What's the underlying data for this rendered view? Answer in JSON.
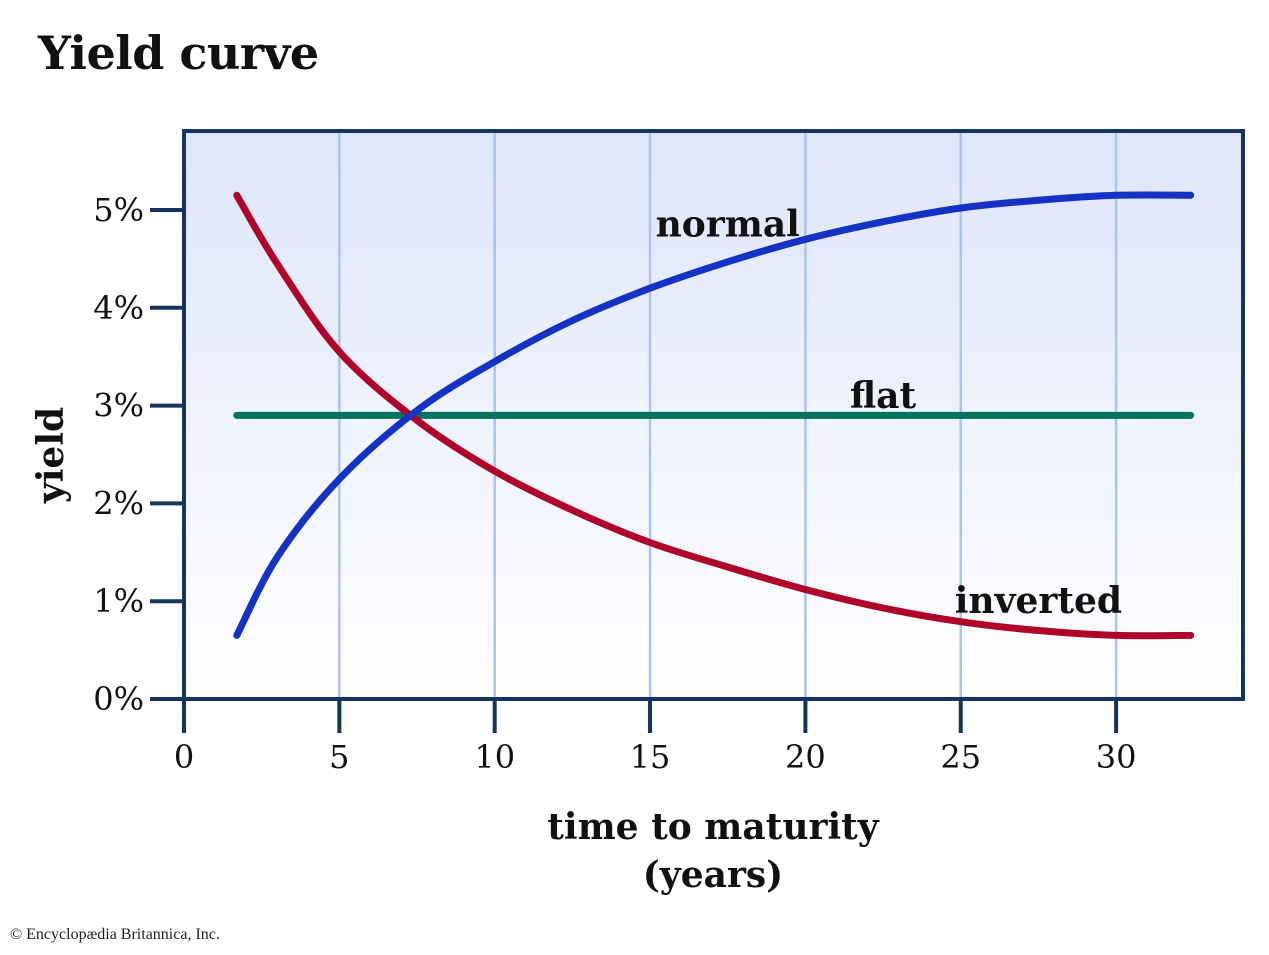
{
  "title": "Yield curve",
  "credit": "© Encyclopædia Britannica, Inc.",
  "colors": {
    "normal": "#1432c4",
    "inverted": "#b0052a",
    "flat": "#00735f",
    "frame": "#15345e",
    "grid": "#aac4ee",
    "plot_bg_top": "#dde5fa",
    "plot_bg_bottom": "#ffffff"
  },
  "chart_data": {
    "type": "line",
    "title": "Yield curve",
    "xlabel": [
      "time to maturity",
      "(years)"
    ],
    "ylabel": "yield",
    "xlim": [
      0,
      34
    ],
    "ylim": [
      0,
      5.8
    ],
    "xticks": [
      0,
      5,
      10,
      15,
      20,
      25,
      30
    ],
    "xtick_labels": [
      "0",
      "5",
      "10",
      "15",
      "20",
      "25",
      "30"
    ],
    "yticks": [
      0,
      1,
      2,
      3,
      4,
      5
    ],
    "ytick_labels": [
      "0%",
      "1%",
      "2%",
      "3%",
      "4%",
      "5%"
    ],
    "grid": "vertical",
    "series": [
      {
        "name": "normal",
        "color": "#1432c4",
        "x": [
          1.7,
          3,
          5,
          7.5,
          10,
          12.5,
          15,
          17.5,
          20,
          22.5,
          25,
          27.5,
          30,
          32.4
        ],
        "y": [
          0.65,
          1.45,
          2.25,
          2.95,
          3.45,
          3.87,
          4.2,
          4.47,
          4.7,
          4.88,
          5.02,
          5.1,
          5.15,
          5.15
        ]
      },
      {
        "name": "flat",
        "color": "#00735f",
        "x": [
          1.7,
          32.4
        ],
        "y": [
          2.9,
          2.9
        ]
      },
      {
        "name": "inverted",
        "color": "#b0052a",
        "x": [
          1.7,
          3,
          5,
          7.5,
          10,
          12.5,
          15,
          17.5,
          20,
          22.5,
          25,
          27.5,
          30,
          32.4
        ],
        "y": [
          5.15,
          4.45,
          3.55,
          2.85,
          2.33,
          1.93,
          1.6,
          1.35,
          1.12,
          0.93,
          0.79,
          0.7,
          0.65,
          0.65
        ]
      }
    ],
    "labels": [
      {
        "text": "normal",
        "series": "normal",
        "x": 17.5,
        "y": 4.85
      },
      {
        "text": "flat",
        "series": "flat",
        "x": 22.5,
        "y": 3.1
      },
      {
        "text": "inverted",
        "series": "inverted",
        "x": 27.5,
        "y": 1.0
      }
    ]
  }
}
